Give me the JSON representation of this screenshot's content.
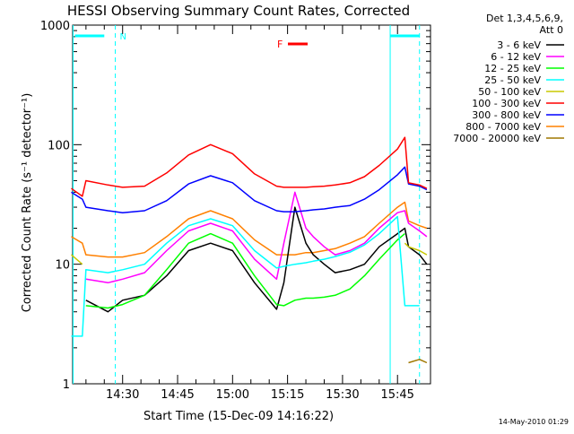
{
  "chart_data": {
    "type": "line",
    "title": "HESSI Observing Summary Count Rates, Corrected",
    "xlabel": "Start Time (15-Dec-09 14:16:22)",
    "ylabel": "Corrected Count Rate (s⁻¹ detector⁻¹)",
    "y_scale": "log",
    "ylim": [
      1,
      1000
    ],
    "y_ticks": [
      {
        "v": 1,
        "label": "1"
      },
      {
        "v": 10,
        "label": "10"
      },
      {
        "v": 100,
        "label": "100"
      },
      {
        "v": 1000,
        "label": "1000"
      }
    ],
    "xlim": [
      "14:16:22",
      "15:54:00"
    ],
    "x_ticks": [
      "14:30",
      "14:45",
      "15:00",
      "15:15",
      "15:30",
      "15:45"
    ],
    "legend_placement": "right",
    "legend_header": [
      "Det 1,3,4,5,6,9,",
      "Att 0"
    ],
    "timestamp": "14-May-2010 01:29",
    "flags": [
      {
        "label": "N",
        "color": "#00ffff"
      },
      {
        "label": "F",
        "color": "#ff0000"
      }
    ],
    "series": [
      {
        "name": "3 - 6 keV",
        "color": "#000000",
        "x": [
          "14:16",
          "14:19",
          "14:20",
          "14:26",
          "14:30",
          "14:36",
          "14:42",
          "14:48",
          "14:54",
          "15:00",
          "15:06",
          "15:12",
          "15:14",
          "15:17",
          "15:20",
          "15:22",
          "15:25",
          "15:28",
          "15:32",
          "15:36",
          "15:40",
          "15:45",
          "15:47",
          "15:48",
          "15:51",
          "15:53"
        ],
        "y": [
          null,
          null,
          5,
          4,
          5,
          5.5,
          8,
          13,
          15,
          13,
          7,
          4.2,
          7,
          30,
          15,
          12,
          10,
          8.5,
          9,
          10,
          14,
          18,
          20,
          14,
          12,
          10
        ]
      },
      {
        "name": "6 - 12 keV",
        "color": "#ff00ff",
        "x": [
          "14:16",
          "14:19",
          "14:20",
          "14:26",
          "14:30",
          "14:36",
          "14:42",
          "14:48",
          "14:54",
          "15:00",
          "15:06",
          "15:12",
          "15:14",
          "15:17",
          "15:20",
          "15:22",
          "15:25",
          "15:28",
          "15:32",
          "15:36",
          "15:40",
          "15:45",
          "15:47",
          "15:48",
          "15:51",
          "15:53"
        ],
        "y": [
          null,
          null,
          7.5,
          7,
          7.5,
          8.5,
          13,
          19,
          22,
          19,
          11,
          7.5,
          15,
          40,
          20,
          17,
          14,
          12,
          13,
          15,
          20,
          27,
          28,
          22,
          19,
          17
        ]
      },
      {
        "name": "12 - 25 keV",
        "color": "#00ff00",
        "x": [
          "14:16",
          "14:19",
          "14:20",
          "14:26",
          "14:30",
          "14:36",
          "14:42",
          "14:48",
          "14:54",
          "15:00",
          "15:06",
          "15:12",
          "15:14",
          "15:17",
          "15:20",
          "15:22",
          "15:25",
          "15:28",
          "15:32",
          "15:36",
          "15:40",
          "15:45",
          "15:47",
          "15:48",
          "15:51",
          "15:53"
        ],
        "y": [
          null,
          null,
          4.5,
          4.3,
          4.6,
          5.5,
          9,
          15,
          18,
          15,
          8,
          4.6,
          4.5,
          5,
          5.2,
          5.2,
          5.3,
          5.5,
          6.2,
          8,
          11,
          16,
          18,
          null,
          null,
          null
        ]
      },
      {
        "name": "25 - 50 keV",
        "color": "#00ffff",
        "x": [
          "14:16",
          "14:19",
          "14:20",
          "14:26",
          "14:30",
          "14:36",
          "14:42",
          "14:48",
          "14:54",
          "15:00",
          "15:06",
          "15:12",
          "15:14",
          "15:17",
          "15:20",
          "15:22",
          "15:25",
          "15:28",
          "15:32",
          "15:36",
          "15:40",
          "15:45",
          "15:47",
          "15:48",
          "15:51",
          "15:53"
        ],
        "y": [
          2.5,
          2.5,
          9,
          8.5,
          9,
          10,
          15,
          21,
          24,
          21,
          13,
          9.3,
          9.6,
          10,
          10.3,
          10.6,
          11,
          11.6,
          12.6,
          14.5,
          18,
          25,
          4.5,
          4.5,
          4.5,
          null
        ]
      },
      {
        "name": "50 - 100 keV",
        "color": "#c8c800",
        "x": [
          "14:16",
          "14:19",
          "14:20",
          "14:26",
          "14:30",
          "14:36",
          "14:42",
          "14:48",
          "14:54",
          "15:00",
          "15:06",
          "15:12",
          "15:14",
          "15:17",
          "15:20",
          "15:22",
          "15:25",
          "15:28",
          "15:32",
          "15:36",
          "15:40",
          "15:45",
          "15:47",
          "15:48",
          "15:51",
          "15:53"
        ],
        "y": [
          12,
          10,
          null,
          null,
          null,
          null,
          null,
          null,
          null,
          null,
          null,
          null,
          null,
          null,
          null,
          null,
          null,
          null,
          null,
          null,
          null,
          null,
          15,
          14,
          13,
          12
        ]
      },
      {
        "name": "100 - 300 keV",
        "color": "#ff0000",
        "x": [
          "14:16",
          "14:19",
          "14:20",
          "14:26",
          "14:30",
          "14:36",
          "14:42",
          "14:48",
          "14:54",
          "15:00",
          "15:06",
          "15:12",
          "15:14",
          "15:17",
          "15:20",
          "15:22",
          "15:25",
          "15:28",
          "15:32",
          "15:36",
          "15:40",
          "15:45",
          "15:47",
          "15:48",
          "15:51",
          "15:53"
        ],
        "y": [
          43,
          37,
          50,
          46,
          44,
          45,
          58,
          82,
          100,
          84,
          57,
          45,
          44,
          44,
          44,
          44.5,
          45,
          46,
          48,
          54,
          67,
          92,
          115,
          48,
          46,
          43
        ]
      },
      {
        "name": "300 - 800 keV",
        "color": "#0000ff",
        "x": [
          "14:16",
          "14:19",
          "14:20",
          "14:26",
          "14:30",
          "14:36",
          "14:42",
          "14:48",
          "14:54",
          "15:00",
          "15:06",
          "15:12",
          "15:14",
          "15:17",
          "15:20",
          "15:22",
          "15:25",
          "15:28",
          "15:32",
          "15:36",
          "15:40",
          "15:45",
          "15:47",
          "15:48",
          "15:51",
          "15:53"
        ],
        "y": [
          40,
          35,
          30,
          28,
          27,
          28,
          34,
          47,
          55,
          48,
          34,
          28,
          27.5,
          27.5,
          28,
          28.5,
          29,
          30,
          31,
          35,
          42,
          56,
          65,
          47,
          45,
          42
        ]
      },
      {
        "name": "800 - 7000 keV",
        "color": "#ff8000",
        "x": [
          "14:16",
          "14:19",
          "14:20",
          "14:26",
          "14:30",
          "14:36",
          "14:42",
          "14:48",
          "14:54",
          "15:00",
          "15:06",
          "15:12",
          "15:14",
          "15:17",
          "15:20",
          "15:22",
          "15:25",
          "15:28",
          "15:32",
          "15:36",
          "15:40",
          "15:45",
          "15:47",
          "15:48",
          "15:51",
          "15:53"
        ],
        "y": [
          17,
          15,
          12,
          11.5,
          11.5,
          12.5,
          17,
          24,
          28,
          24,
          16,
          12,
          12,
          12,
          12.5,
          12.5,
          13,
          13.5,
          15,
          17,
          22,
          30,
          33,
          23,
          21,
          20
        ]
      },
      {
        "name": "7000 - 20000 keV",
        "color": "#a07800",
        "x": [
          "14:16",
          "14:19",
          "14:20",
          "14:26",
          "14:30",
          "14:36",
          "14:42",
          "14:48",
          "14:54",
          "15:00",
          "15:06",
          "15:12",
          "15:14",
          "15:17",
          "15:20",
          "15:22",
          "15:25",
          "15:28",
          "15:32",
          "15:36",
          "15:40",
          "15:45",
          "15:47",
          "15:48",
          "15:51",
          "15:53"
        ],
        "y": [
          null,
          null,
          null,
          null,
          null,
          null,
          null,
          null,
          null,
          null,
          null,
          null,
          null,
          null,
          null,
          null,
          null,
          null,
          null,
          null,
          null,
          null,
          null,
          1.5,
          1.6,
          1.5
        ]
      }
    ]
  }
}
